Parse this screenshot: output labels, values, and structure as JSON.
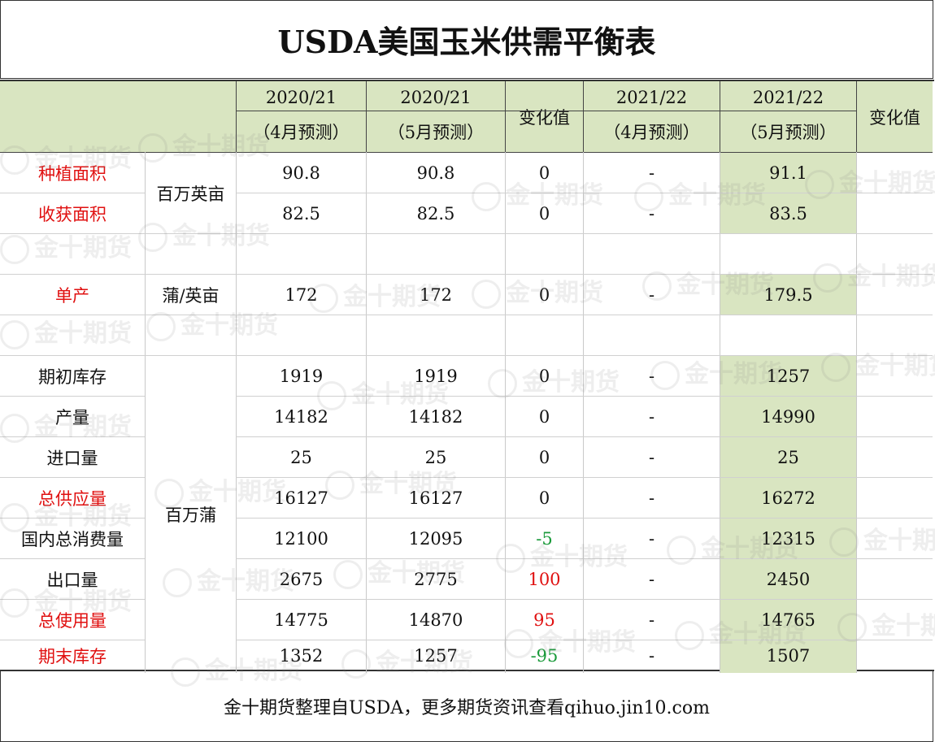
{
  "title": "USDA美国玉米供需平衡表",
  "footer": "金十期货整理自USDA，更多期货资讯查看qihuo.jin10.com",
  "watermark": "金十期货",
  "header": {
    "col1_top": "2020/21",
    "col1_bottom": "（4月预测）",
    "col2_top": "2020/21",
    "col2_bottom": "（5月预测）",
    "col3": "变化值",
    "col4_top": "2021/22",
    "col4_bottom": "（4月预测）",
    "col5_top": "2021/22",
    "col5_bottom": "（5月预测）",
    "col6": "变化值"
  },
  "units": {
    "area": "百万英亩",
    "yield": "蒲/英亩",
    "volume": "百万蒲"
  },
  "rows": [
    {
      "label": "种植面积",
      "v1": "90.8",
      "v2": "90.8",
      "chg": "0",
      "v4": "-",
      "v5": "91.1"
    },
    {
      "label": "收获面积",
      "v1": "82.5",
      "v2": "82.5",
      "chg": "0",
      "v4": "-",
      "v5": "83.5"
    },
    {
      "label": "单产",
      "v1": "172",
      "v2": "172",
      "chg": "0",
      "v4": "-",
      "v5": "179.5"
    },
    {
      "label": "期初库存",
      "v1": "1919",
      "v2": "1919",
      "chg": "0",
      "v4": "-",
      "v5": "1257"
    },
    {
      "label": "产量",
      "v1": "14182",
      "v2": "14182",
      "chg": "0",
      "v4": "-",
      "v5": "14990"
    },
    {
      "label": "进口量",
      "v1": "25",
      "v2": "25",
      "chg": "0",
      "v4": "-",
      "v5": "25"
    },
    {
      "label": "总供应量",
      "v1": "16127",
      "v2": "16127",
      "chg": "0",
      "v4": "-",
      "v5": "16272"
    },
    {
      "label": "国内总消费量",
      "v1": "12100",
      "v2": "12095",
      "chg": "-5",
      "v4": "-",
      "v5": "12315"
    },
    {
      "label": "出口量",
      "v1": "2675",
      "v2": "2775",
      "chg": "100",
      "v4": "-",
      "v5": "2450"
    },
    {
      "label": "总使用量",
      "v1": "14775",
      "v2": "14870",
      "chg": "95",
      "v4": "-",
      "v5": "14765"
    },
    {
      "label": "期末库存",
      "v1": "1352",
      "v2": "1257",
      "chg": "-95",
      "v4": "-",
      "v5": "1507"
    }
  ],
  "colors": {
    "header_bg": "#d9e5c1",
    "red_label": "#e01010",
    "negative": "#1a9a3a",
    "positive": "#e01010"
  }
}
